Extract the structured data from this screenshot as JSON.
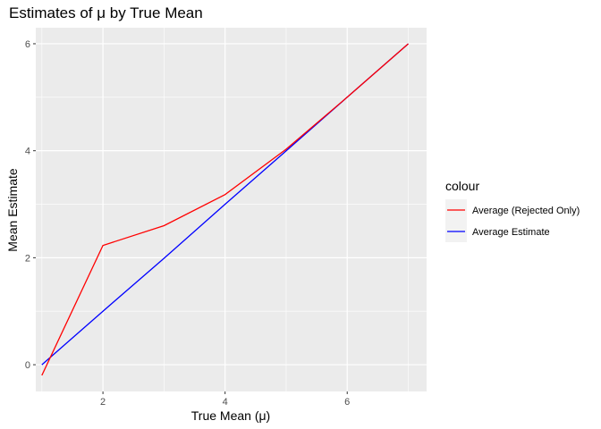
{
  "chart_data": {
    "type": "line",
    "title": "Estimates of μ by True Mean",
    "xlabel": "True Mean (μ)",
    "ylabel": "Mean Estimate",
    "xlim": [
      0.9,
      7.3
    ],
    "ylim": [
      -0.5,
      6.3
    ],
    "x_ticks": [
      2,
      4,
      6
    ],
    "y_ticks": [
      0,
      2,
      4,
      6
    ],
    "grid": true,
    "legend": {
      "title": "colour",
      "placement": "right",
      "entries": [
        "Average (Rejected Only)",
        "Average Estimate"
      ]
    },
    "series": [
      {
        "name": "Average (Rejected Only)",
        "color": "#ff0000",
        "x": [
          1,
          2,
          3,
          4,
          5,
          6,
          7
        ],
        "y": [
          -0.2,
          2.23,
          2.6,
          3.18,
          4.03,
          5.0,
          6.0
        ]
      },
      {
        "name": "Average Estimate",
        "color": "#0000ff",
        "x": [
          1,
          2,
          3,
          4,
          5,
          6,
          7
        ],
        "y": [
          0.0,
          1.0,
          1.99,
          3.0,
          4.0,
          5.0,
          6.0
        ]
      }
    ]
  }
}
